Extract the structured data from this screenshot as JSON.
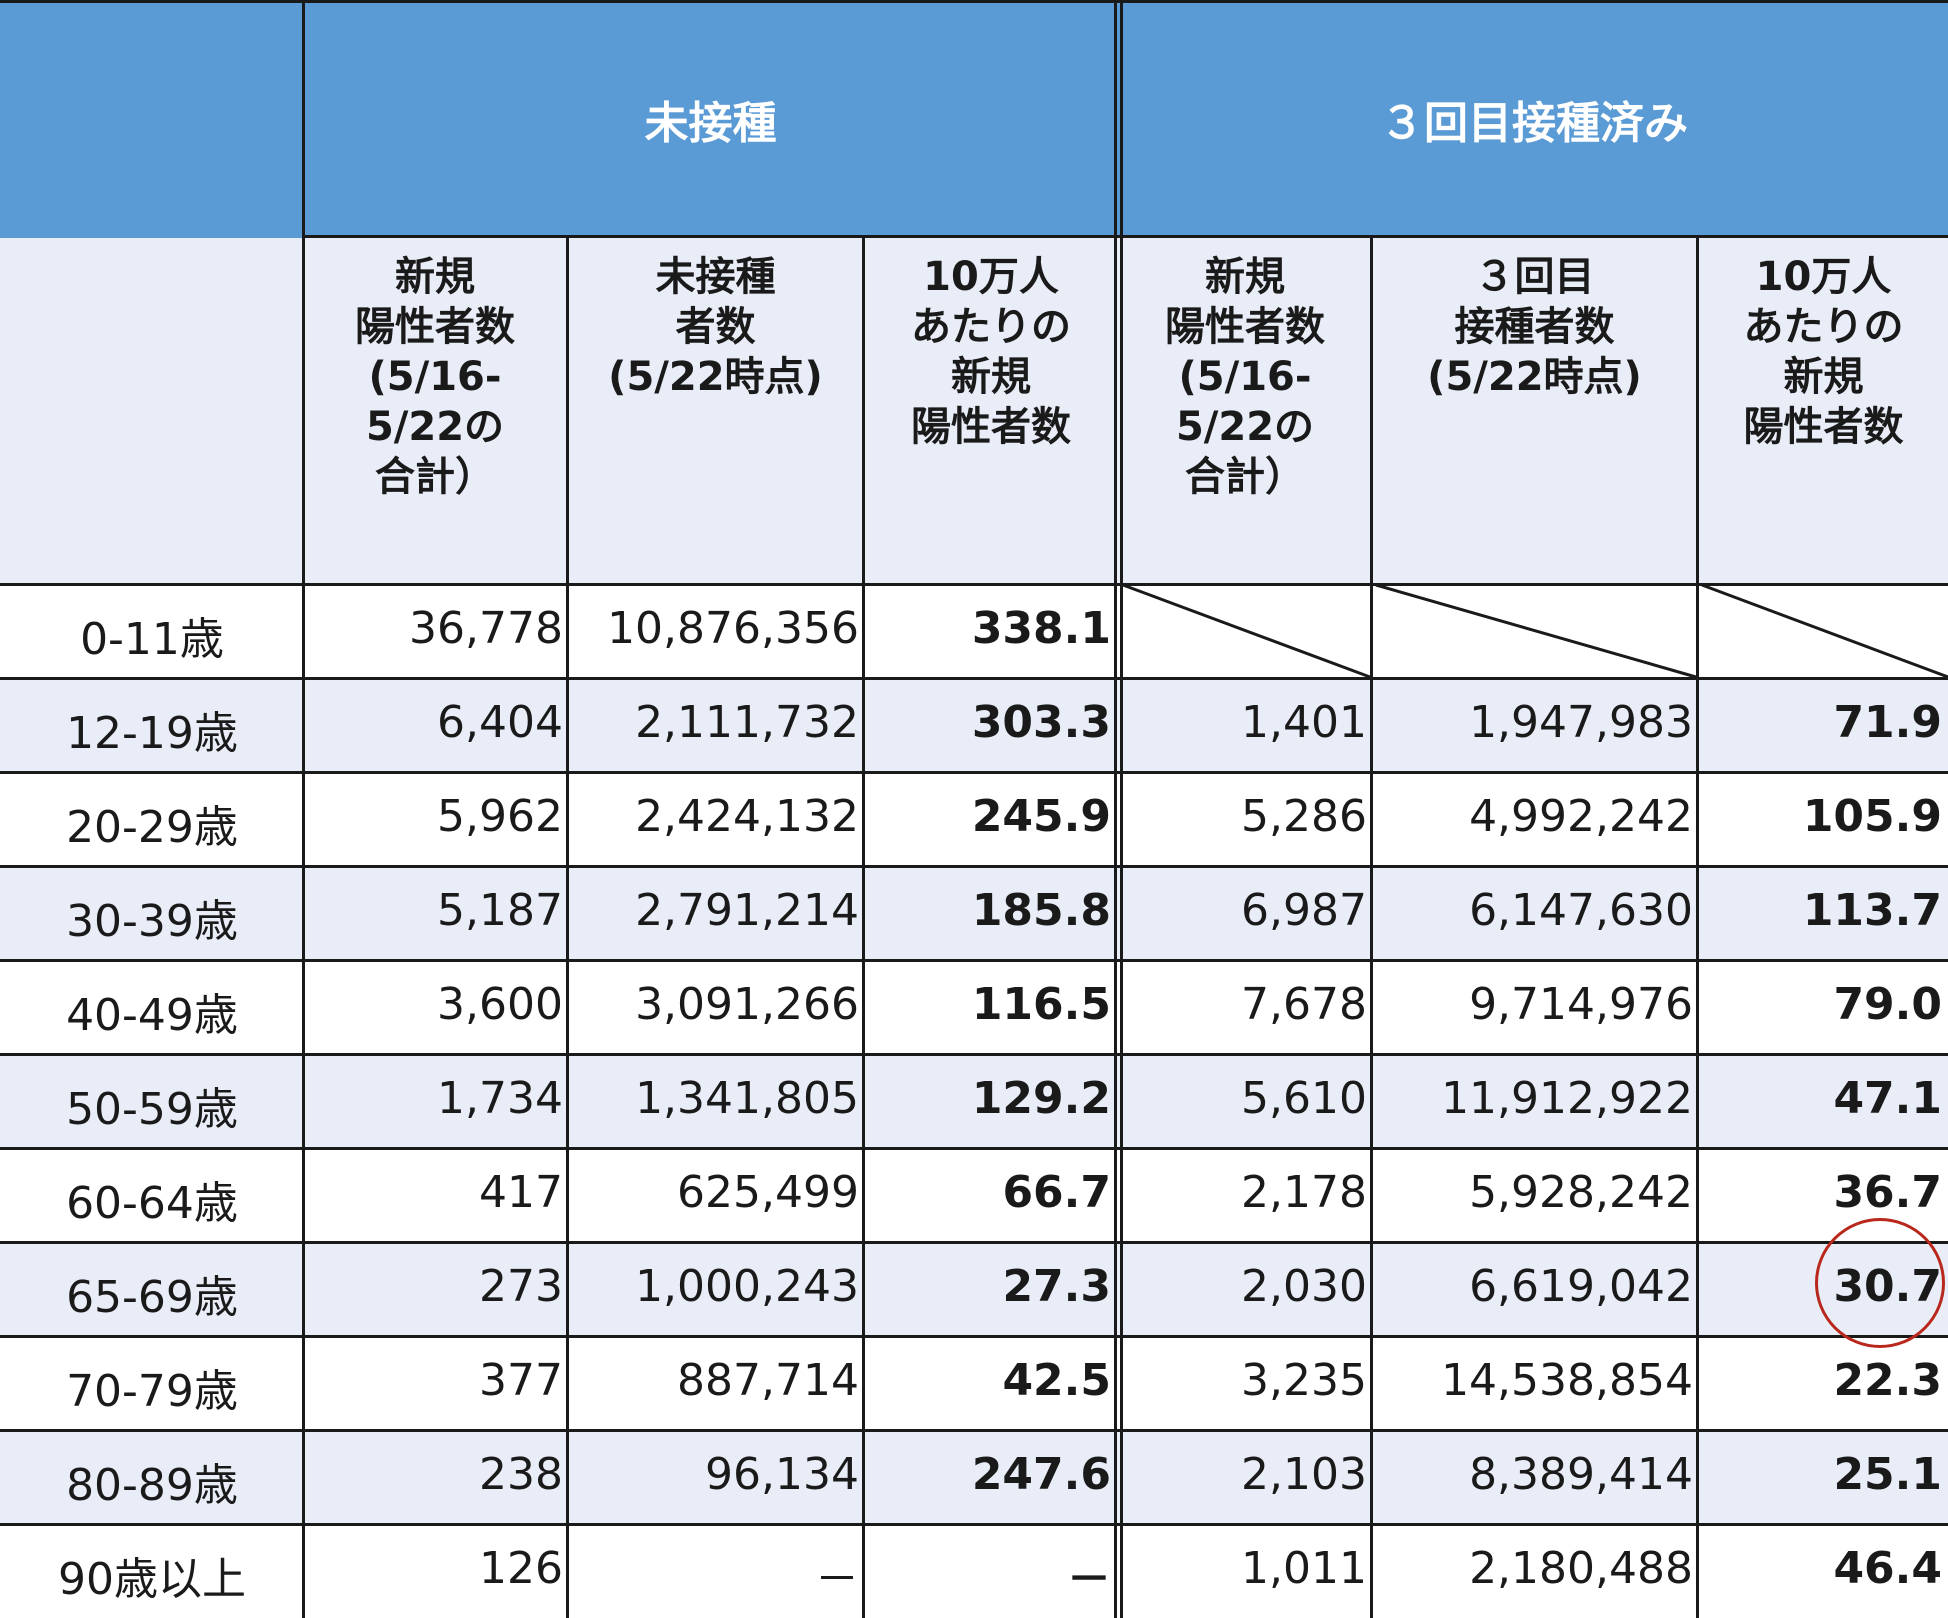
{
  "header": {
    "group_unvaccinated": "未接種",
    "group_third_dose": "３回目接種済み",
    "col_new_cases_unvax": "新規\n陽性者数\n(5/16-\n5/22の\n合計）",
    "col_unvax_count": "未接種\n者数\n(5/22時点)",
    "col_per100k_unvax": "10万人\nあたりの\n新規\n陽性者数",
    "col_new_cases_3rd": "新規\n陽性者数\n(5/16-\n5/22の\n合計）",
    "col_3rd_count": "３回目\n接種者数\n(5/22時点)",
    "col_per100k_3rd": "10万人\nあたりの\n新規\n陽性者数"
  },
  "rows": [
    {
      "age": "0-11歳",
      "u_cases": "36,778",
      "u_pop": "10,876,356",
      "u_rate": "338.1",
      "v_cases": "",
      "v_pop": "",
      "v_rate": ""
    },
    {
      "age": "12-19歳",
      "u_cases": "6,404",
      "u_pop": "2,111,732",
      "u_rate": "303.3",
      "v_cases": "1,401",
      "v_pop": "1,947,983",
      "v_rate": "71.9"
    },
    {
      "age": "20-29歳",
      "u_cases": "5,962",
      "u_pop": "2,424,132",
      "u_rate": "245.9",
      "v_cases": "5,286",
      "v_pop": "4,992,242",
      "v_rate": "105.9"
    },
    {
      "age": "30-39歳",
      "u_cases": "5,187",
      "u_pop": "2,791,214",
      "u_rate": "185.8",
      "v_cases": "6,987",
      "v_pop": "6,147,630",
      "v_rate": "113.7"
    },
    {
      "age": "40-49歳",
      "u_cases": "3,600",
      "u_pop": "3,091,266",
      "u_rate": "116.5",
      "v_cases": "7,678",
      "v_pop": "9,714,976",
      "v_rate": "79.0"
    },
    {
      "age": "50-59歳",
      "u_cases": "1,734",
      "u_pop": "1,341,805",
      "u_rate": "129.2",
      "v_cases": "5,610",
      "v_pop": "11,912,922",
      "v_rate": "47.1"
    },
    {
      "age": "60-64歳",
      "u_cases": "417",
      "u_pop": "625,499",
      "u_rate": "66.7",
      "v_cases": "2,178",
      "v_pop": "5,928,242",
      "v_rate": "36.7"
    },
    {
      "age": "65-69歳",
      "u_cases": "273",
      "u_pop": "1,000,243",
      "u_rate": "27.3",
      "v_cases": "2,030",
      "v_pop": "6,619,042",
      "v_rate": "30.7"
    },
    {
      "age": "70-79歳",
      "u_cases": "377",
      "u_pop": "887,714",
      "u_rate": "42.5",
      "v_cases": "3,235",
      "v_pop": "14,538,854",
      "v_rate": "22.3"
    },
    {
      "age": "80-89歳",
      "u_cases": "238",
      "u_pop": "96,134",
      "u_rate": "247.6",
      "v_cases": "2,103",
      "v_pop": "8,389,414",
      "v_rate": "25.1"
    },
    {
      "age": "90歳以上",
      "u_cases": "126",
      "u_pop": "－",
      "u_rate": "－",
      "v_cases": "1,011",
      "v_pop": "2,180,488",
      "v_rate": "46.4"
    }
  ],
  "colors": {
    "header_blue": "#5b9bd5",
    "row_shade": "#e8edf7",
    "highlight_circle": "#b8281c"
  }
}
